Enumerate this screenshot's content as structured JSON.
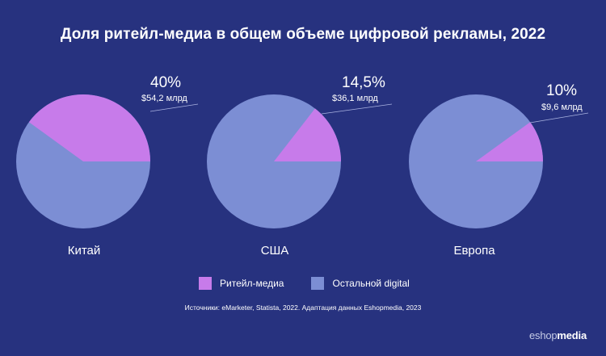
{
  "title": "Доля ритейл-медиа в общем объеме цифровой рекламы, 2022",
  "colors": {
    "background": "#27327f",
    "retail": "#c77bea",
    "other": "#7c8ed4"
  },
  "chart_data": {
    "type": "pie",
    "title": "Доля ритейл-медиа в общем объеме цифровой рекламы, 2022",
    "series_names": [
      "Ритейл-медиа",
      "Остальной digital"
    ],
    "charts": [
      {
        "label": "Китай",
        "retail_share": 40,
        "pct_label": "40%",
        "amount_label": "$54,2 млрд"
      },
      {
        "label": "США",
        "retail_share": 14.5,
        "pct_label": "14,5%",
        "amount_label": "$36,1 млрд"
      },
      {
        "label": "Европа",
        "retail_share": 10,
        "pct_label": "10%",
        "amount_label": "$9,6 млрд"
      }
    ]
  },
  "legend": {
    "retail": "Ритейл-медиа",
    "other": "Остальной digital"
  },
  "source": "Источники: eMarketer, Statista, 2022. Адаптация данных Eshopmedia, 2023",
  "brand": {
    "light": "eshop",
    "bold": "media"
  }
}
